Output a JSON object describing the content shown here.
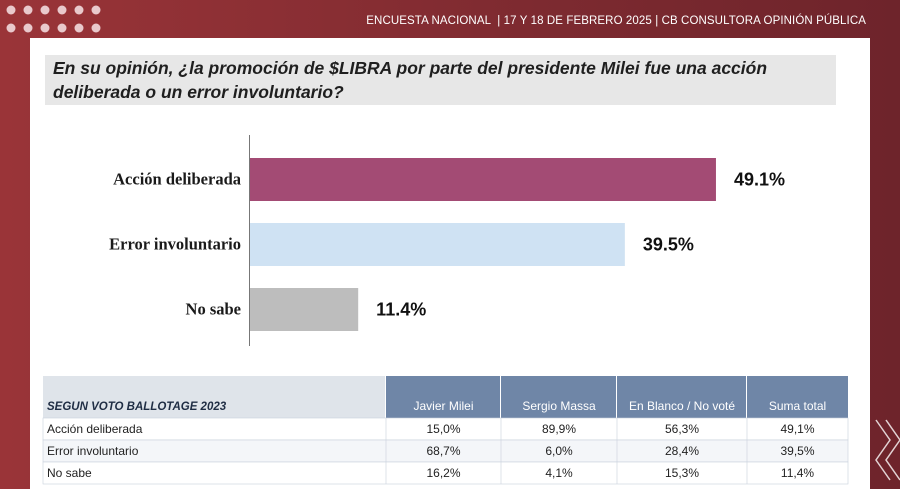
{
  "header": "ENCUESTA NACIONAL  | 17 Y 18 DE FEBRERO 2025 | CB CONSULTORA OPINIÓN PÚBLICA",
  "chart_data": {
    "type": "bar",
    "orientation": "horizontal",
    "title": "En su opinión, ¿la promoción de $LIBRA por parte del presidente Milei fue una acción deliberada o un error involuntario?",
    "categories": [
      "Acción deliberada",
      "Error involuntario",
      "No sabe"
    ],
    "values": [
      49.1,
      39.5,
      11.4
    ],
    "value_labels": [
      "49.1%",
      "39.5%",
      "11.4%"
    ],
    "colors": [
      "#a34b74",
      "#cfe2f3",
      "#bdbdbd"
    ]
  },
  "table": {
    "columns": [
      "SEGUN VOTO BALLOTAGE 2023",
      "Javier Milei",
      "Sergio Massa",
      "En Blanco / No voté",
      "Suma total"
    ],
    "rows": [
      [
        "Acción deliberada",
        "15,0%",
        "89,9%",
        "56,3%",
        "49,1%"
      ],
      [
        "Error involuntario",
        "68,7%",
        "6,0%",
        "28,4%",
        "39,5%"
      ],
      [
        "No sabe",
        "16,2%",
        "4,1%",
        "15,3%",
        "11,4%"
      ]
    ]
  }
}
